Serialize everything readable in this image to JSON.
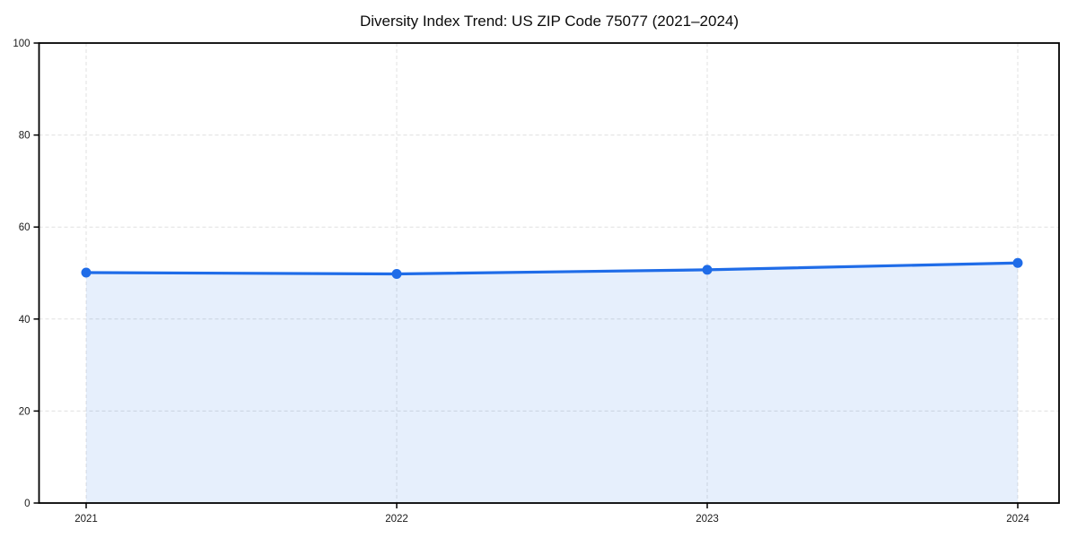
{
  "chart_data": {
    "type": "line",
    "title": "Diversity Index Trend: US ZIP Code 75077 (2021–2024)",
    "x": [
      "2021",
      "2022",
      "2023",
      "2024"
    ],
    "series": [
      {
        "name": "Diversity Index",
        "values": [
          50.1,
          49.8,
          50.7,
          52.2
        ]
      }
    ],
    "xlabel": "",
    "ylabel": "",
    "ylim": [
      0,
      100
    ],
    "yticks": [
      0,
      20,
      40,
      60,
      80,
      100
    ],
    "grid": true,
    "grid_style": "dashed",
    "legend_position": "none",
    "area_fill": true,
    "marker": "circle",
    "colors": {
      "line": "#1f6ce8",
      "marker": "#1f6ce8",
      "fill_base": "#1f6ce8",
      "fill_opacity": 0.11,
      "grid": "#e0e0e0",
      "axis": "#000000",
      "text": "#1a1a1a",
      "background": "#ffffff"
    }
  }
}
